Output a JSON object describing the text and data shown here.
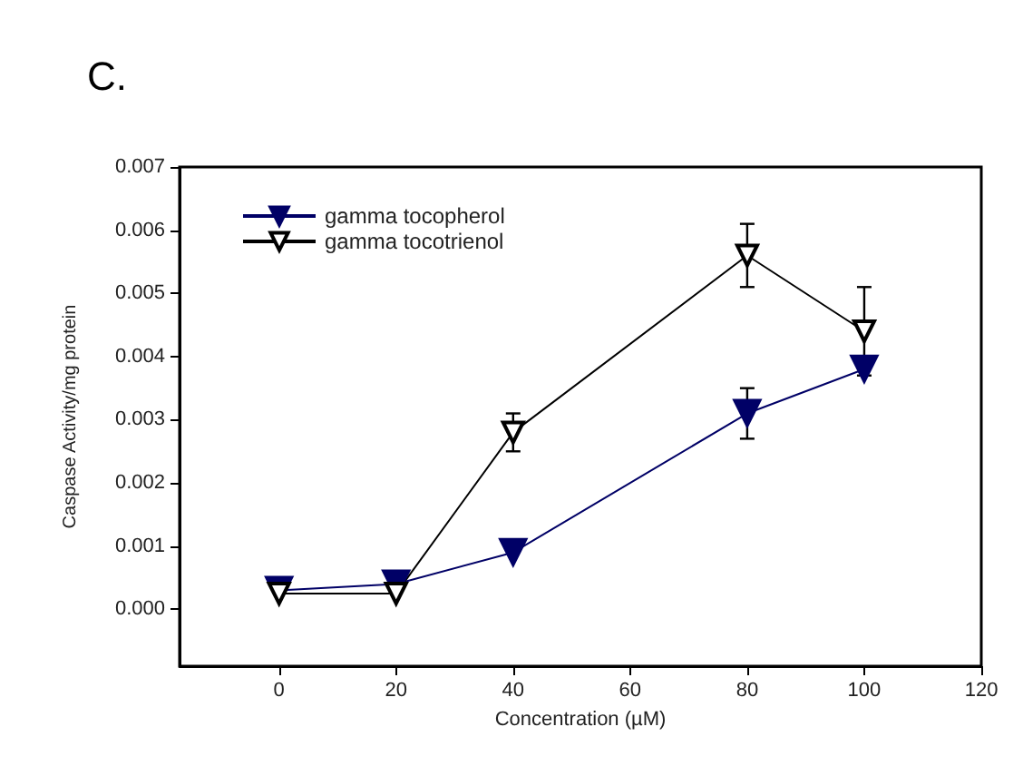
{
  "chart_data": {
    "type": "line",
    "title": "C.",
    "xlabel": "Concentration (µM)",
    "ylabel": "Caspase Activity/mg protein",
    "x": [
      0,
      20,
      40,
      80,
      100
    ],
    "series": [
      {
        "name": "gamma tocopherol",
        "color": "#000066",
        "values": [
          0.0003,
          0.0004,
          0.0009,
          0.0031,
          0.0038
        ],
        "errors": [
          null,
          null,
          null,
          0.0004,
          null
        ]
      },
      {
        "name": "gamma tocotrienol",
        "color": "#000000",
        "values": [
          0.00025,
          0.00025,
          0.0028,
          0.0056,
          0.0044
        ],
        "errors": [
          null,
          null,
          0.0003,
          0.0005,
          0.0007
        ]
      }
    ],
    "xlim": [
      -17,
      120
    ],
    "xticks": [
      0,
      20,
      40,
      60,
      80,
      100,
      120
    ],
    "ylim": [
      -0.0009,
      0.007
    ],
    "yticks": [
      {
        "value": 0,
        "label": "0.000"
      },
      {
        "value": 0.001,
        "label": "0.001"
      },
      {
        "value": 0.002,
        "label": "0.002"
      },
      {
        "value": 0.003,
        "label": "0.003"
      },
      {
        "value": 0.004,
        "label": "0.004"
      },
      {
        "value": 0.005,
        "label": "0.005"
      },
      {
        "value": 0.006,
        "label": "0.006"
      },
      {
        "value": 0.007,
        "label": "0.007"
      }
    ],
    "grid": false,
    "legend": "top left",
    "marker": "triangle",
    "line_style": "solid"
  }
}
